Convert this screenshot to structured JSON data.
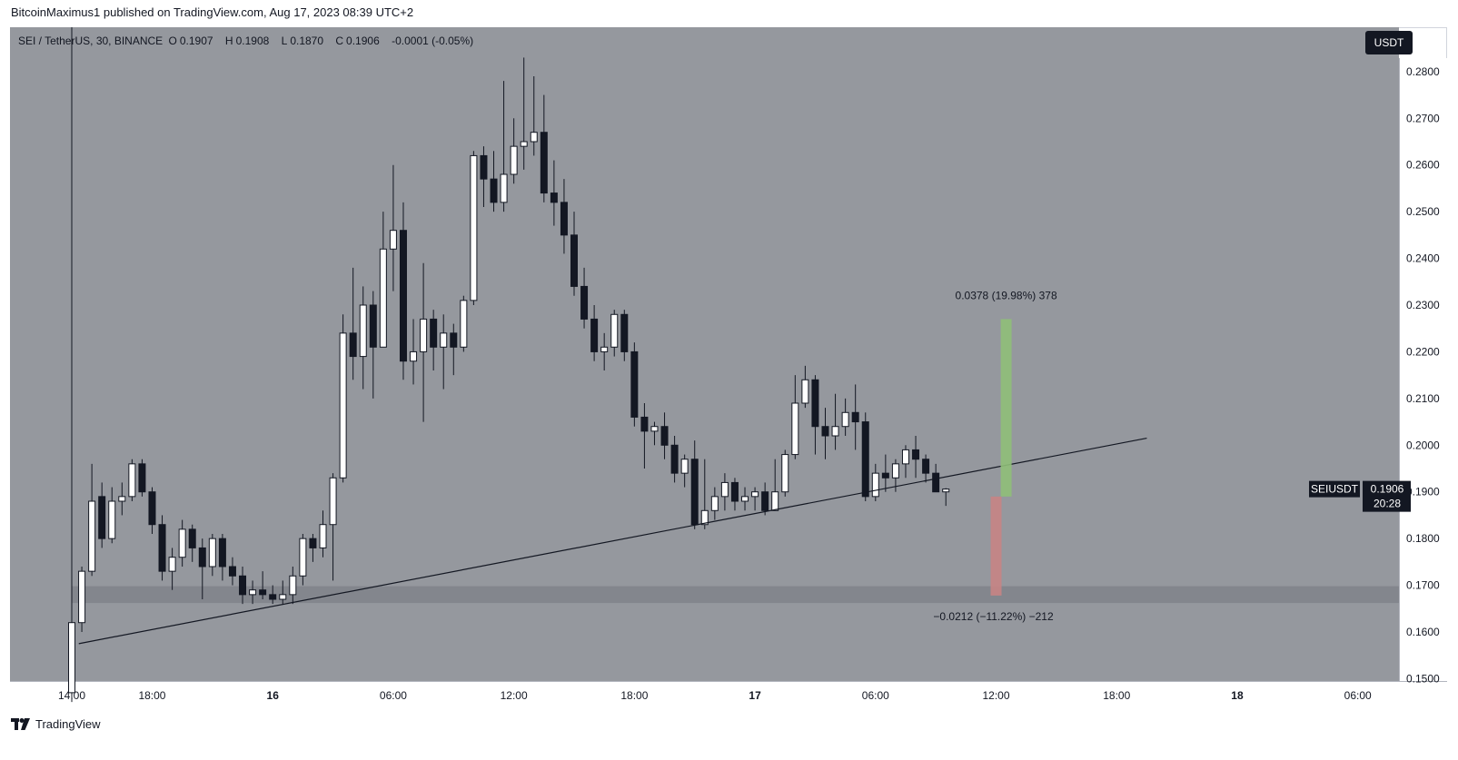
{
  "header": {
    "attribution": "BitcoinMaximus1 published on TradingView.com, Aug 17, 2023 08:39 UTC+2"
  },
  "legend": {
    "symbol": "SEI / TetherUS, 30, BINANCE",
    "open_label": "O",
    "open": "0.1907",
    "high_label": "H",
    "high": "0.1908",
    "low_label": "L",
    "low": "0.1870",
    "close_label": "C",
    "close": "0.1906",
    "change": "-0.0001 (-0.05%)"
  },
  "currency_badge": "USDT",
  "footer": {
    "brand": "TradingView"
  },
  "chart_data": {
    "type": "candlestick",
    "symbol": "SEIUSDT",
    "interval": "30",
    "exchange": "BINANCE",
    "y_range": [
      0.1495,
      0.2895
    ],
    "price_ticks": [
      "0.2800",
      "0.2700",
      "0.2600",
      "0.2500",
      "0.2400",
      "0.2300",
      "0.2200",
      "0.2100",
      "0.2000",
      "0.1900",
      "0.1800",
      "0.1700",
      "0.1600",
      "0.1500"
    ],
    "time_ticks": [
      {
        "label": "14:00",
        "pos": 0
      },
      {
        "label": "18:00",
        "pos": 8
      },
      {
        "label": "16",
        "pos": 20
      },
      {
        "label": "06:00",
        "pos": 32
      },
      {
        "label": "12:00",
        "pos": 44
      },
      {
        "label": "18:00",
        "pos": 56
      },
      {
        "label": "17",
        "pos": 68
      },
      {
        "label": "06:00",
        "pos": 80
      },
      {
        "label": "12:00",
        "pos": 92
      },
      {
        "label": "18:00",
        "pos": 104
      },
      {
        "label": "18",
        "pos": 116
      },
      {
        "label": "06:00",
        "pos": 128
      }
    ],
    "candles": [
      [
        0.147,
        0.162,
        0.145,
        0.162
      ],
      [
        0.162,
        0.173,
        0.16,
        0.174
      ],
      [
        0.173,
        0.188,
        0.172,
        0.196
      ],
      [
        0.189,
        0.18,
        0.178,
        0.192
      ],
      [
        0.18,
        0.188,
        0.179,
        0.191
      ],
      [
        0.188,
        0.189,
        0.185,
        0.192
      ],
      [
        0.189,
        0.196,
        0.188,
        0.197
      ],
      [
        0.196,
        0.19,
        0.189,
        0.197
      ],
      [
        0.19,
        0.183,
        0.181,
        0.191
      ],
      [
        0.183,
        0.173,
        0.171,
        0.185
      ],
      [
        0.173,
        0.176,
        0.169,
        0.178
      ],
      [
        0.176,
        0.182,
        0.174,
        0.184
      ],
      [
        0.182,
        0.178,
        0.175,
        0.183
      ],
      [
        0.178,
        0.174,
        0.167,
        0.18
      ],
      [
        0.174,
        0.18,
        0.172,
        0.181
      ],
      [
        0.18,
        0.174,
        0.171,
        0.181
      ],
      [
        0.174,
        0.172,
        0.17,
        0.176
      ],
      [
        0.172,
        0.168,
        0.166,
        0.174
      ],
      [
        0.168,
        0.169,
        0.166,
        0.171
      ],
      [
        0.169,
        0.168,
        0.167,
        0.173
      ],
      [
        0.168,
        0.167,
        0.166,
        0.17
      ],
      [
        0.167,
        0.168,
        0.166,
        0.171
      ],
      [
        0.168,
        0.172,
        0.166,
        0.174
      ],
      [
        0.172,
        0.18,
        0.17,
        0.181
      ],
      [
        0.18,
        0.178,
        0.175,
        0.181
      ],
      [
        0.178,
        0.183,
        0.176,
        0.186
      ],
      [
        0.183,
        0.193,
        0.171,
        0.194
      ],
      [
        0.193,
        0.224,
        0.192,
        0.228
      ],
      [
        0.224,
        0.219,
        0.214,
        0.238
      ],
      [
        0.219,
        0.23,
        0.212,
        0.234
      ],
      [
        0.23,
        0.221,
        0.21,
        0.233
      ],
      [
        0.221,
        0.242,
        0.221,
        0.25
      ],
      [
        0.242,
        0.246,
        0.233,
        0.26
      ],
      [
        0.246,
        0.218,
        0.214,
        0.252
      ],
      [
        0.218,
        0.22,
        0.213,
        0.227
      ],
      [
        0.22,
        0.227,
        0.205,
        0.239
      ],
      [
        0.227,
        0.221,
        0.216,
        0.229
      ],
      [
        0.221,
        0.224,
        0.212,
        0.228
      ],
      [
        0.224,
        0.221,
        0.215,
        0.226
      ],
      [
        0.221,
        0.231,
        0.22,
        0.232
      ],
      [
        0.231,
        0.262,
        0.23,
        0.263
      ],
      [
        0.262,
        0.257,
        0.251,
        0.264
      ],
      [
        0.257,
        0.252,
        0.25,
        0.263
      ],
      [
        0.252,
        0.258,
        0.25,
        0.278
      ],
      [
        0.258,
        0.264,
        0.256,
        0.27
      ],
      [
        0.264,
        0.265,
        0.259,
        0.283
      ],
      [
        0.265,
        0.267,
        0.262,
        0.279
      ],
      [
        0.267,
        0.254,
        0.252,
        0.275
      ],
      [
        0.254,
        0.252,
        0.247,
        0.261
      ],
      [
        0.252,
        0.245,
        0.241,
        0.257
      ],
      [
        0.245,
        0.234,
        0.232,
        0.25
      ],
      [
        0.234,
        0.227,
        0.225,
        0.238
      ],
      [
        0.227,
        0.22,
        0.218,
        0.23
      ],
      [
        0.22,
        0.221,
        0.216,
        0.224
      ],
      [
        0.221,
        0.228,
        0.219,
        0.229
      ],
      [
        0.228,
        0.22,
        0.218,
        0.229
      ],
      [
        0.22,
        0.206,
        0.204,
        0.222
      ],
      [
        0.206,
        0.203,
        0.195,
        0.209
      ],
      [
        0.203,
        0.204,
        0.2,
        0.205
      ],
      [
        0.204,
        0.2,
        0.197,
        0.207
      ],
      [
        0.2,
        0.194,
        0.192,
        0.202
      ],
      [
        0.194,
        0.197,
        0.191,
        0.198
      ],
      [
        0.197,
        0.183,
        0.182,
        0.201
      ],
      [
        0.183,
        0.186,
        0.182,
        0.197
      ],
      [
        0.186,
        0.189,
        0.184,
        0.191
      ],
      [
        0.189,
        0.192,
        0.186,
        0.194
      ],
      [
        0.192,
        0.188,
        0.186,
        0.193
      ],
      [
        0.188,
        0.189,
        0.186,
        0.191
      ],
      [
        0.189,
        0.19,
        0.186,
        0.191
      ],
      [
        0.19,
        0.186,
        0.185,
        0.192
      ],
      [
        0.186,
        0.19,
        0.186,
        0.197
      ],
      [
        0.19,
        0.198,
        0.189,
        0.199
      ],
      [
        0.198,
        0.209,
        0.197,
        0.215
      ],
      [
        0.209,
        0.214,
        0.208,
        0.217
      ],
      [
        0.214,
        0.204,
        0.198,
        0.215
      ],
      [
        0.204,
        0.202,
        0.197,
        0.208
      ],
      [
        0.202,
        0.204,
        0.199,
        0.211
      ],
      [
        0.204,
        0.207,
        0.202,
        0.21
      ],
      [
        0.207,
        0.205,
        0.199,
        0.213
      ],
      [
        0.205,
        0.189,
        0.188,
        0.207
      ],
      [
        0.189,
        0.194,
        0.188,
        0.196
      ],
      [
        0.194,
        0.193,
        0.19,
        0.198
      ],
      [
        0.193,
        0.196,
        0.19,
        0.197
      ],
      [
        0.196,
        0.199,
        0.193,
        0.2
      ],
      [
        0.199,
        0.197,
        0.193,
        0.202
      ],
      [
        0.197,
        0.194,
        0.192,
        0.198
      ],
      [
        0.194,
        0.19,
        0.19,
        0.196
      ],
      [
        0.19,
        0.1906,
        0.187,
        0.1908
      ]
    ],
    "trendline": {
      "start": {
        "pos": 0.7,
        "value": 0.1575
      },
      "end": {
        "pos": 107,
        "value": 0.2015
      }
    },
    "support_zone": {
      "low": 0.1662,
      "high": 0.1698
    },
    "measure_up": {
      "from": 0.189,
      "to": 0.227,
      "pos": 93,
      "label": "0.0378 (19.98%) 378",
      "color": "#8fbf78"
    },
    "measure_down": {
      "from": 0.189,
      "to": 0.1678,
      "pos": 92,
      "label": "−0.0212 (−11.22%) −212",
      "color": "#c78484"
    },
    "current_price": {
      "symbol": "SEIUSDT",
      "price": "0.1906",
      "countdown": "20:28"
    },
    "vertical_marker_pos": 0
  }
}
